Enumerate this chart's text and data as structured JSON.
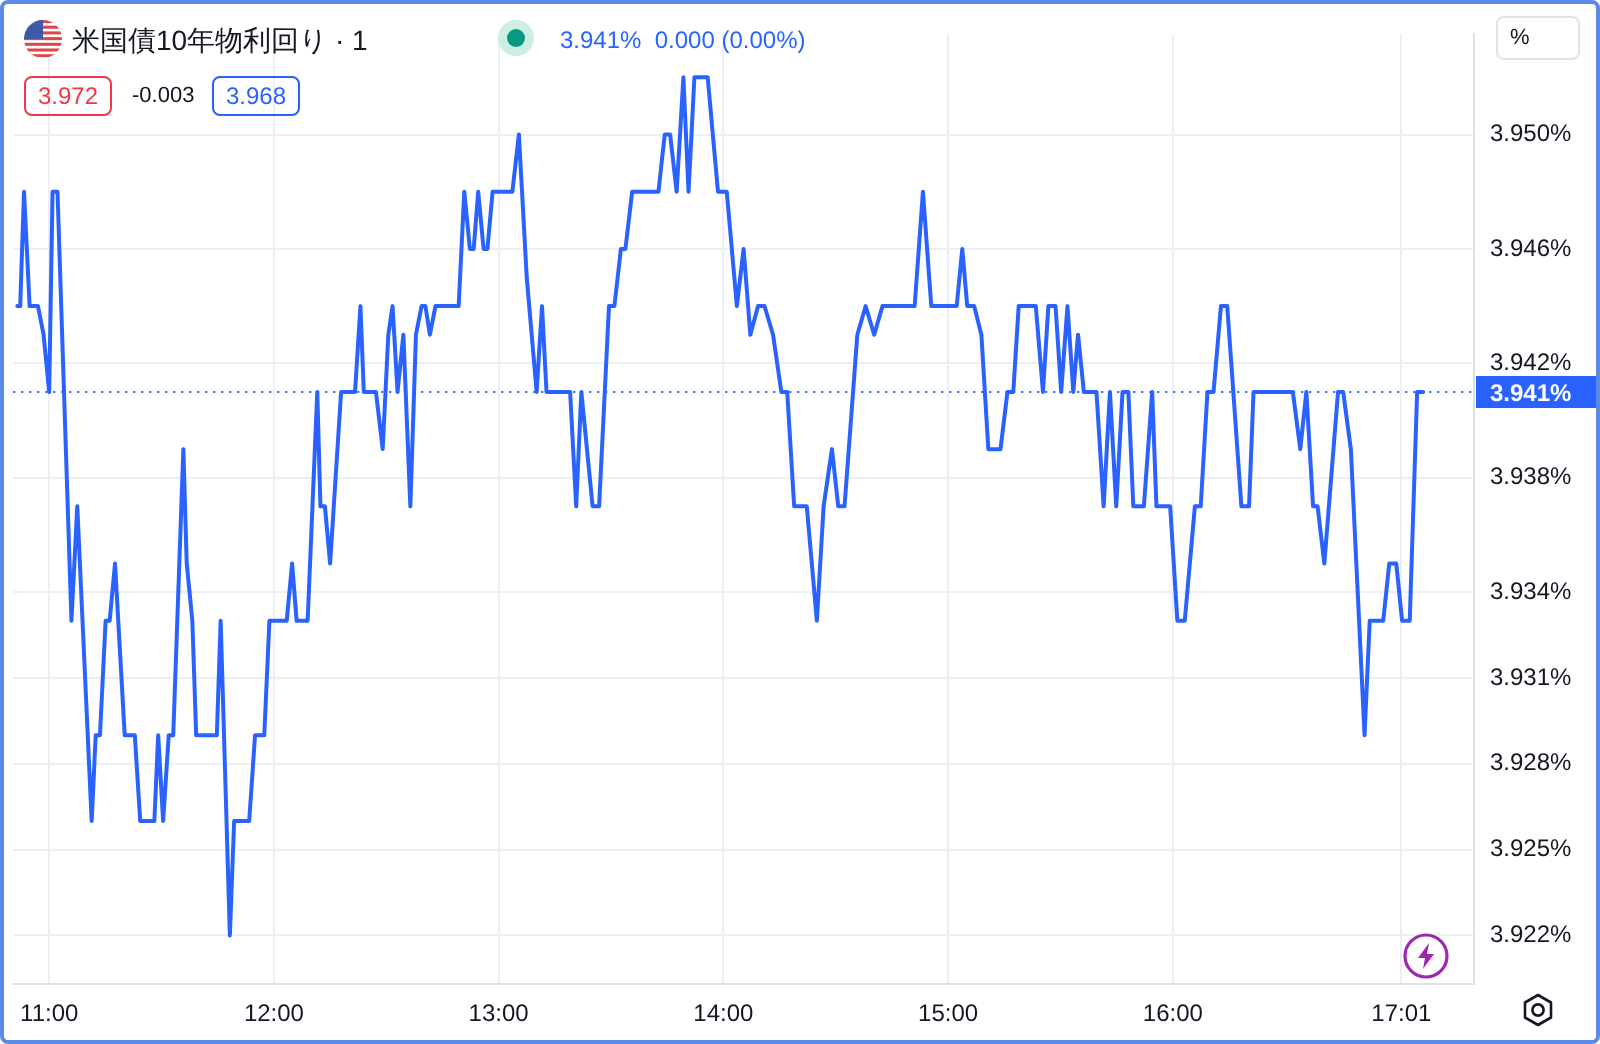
{
  "chart_data": {
    "type": "line",
    "title": "米国債10年物利回り · 1",
    "subtitle": "3.941%  0.000 (0.00%)",
    "annotations": [
      "3.972",
      "-0.003",
      "3.968",
      "%"
    ],
    "x": [
      10.858,
      10.871,
      10.888,
      10.913,
      10.95,
      10.975,
      11,
      11.015,
      11.037,
      11.099,
      11.125,
      11.189,
      11.207,
      11.226,
      11.251,
      11.269,
      11.293,
      11.336,
      11.381,
      11.405,
      11.468,
      11.485,
      11.507,
      11.532,
      11.552,
      11.597,
      11.612,
      11.637,
      11.654,
      11.746,
      11.763,
      11.804,
      11.823,
      11.89,
      11.916,
      11.957,
      11.98,
      12.057,
      12.081,
      12.101,
      12.15,
      12.193,
      12.207,
      12.227,
      12.25,
      12.299,
      12.361,
      12.385,
      12.4,
      12.454,
      12.484,
      12.509,
      12.528,
      12.55,
      12.576,
      12.607,
      12.632,
      12.657,
      12.674,
      12.694,
      12.719,
      12.822,
      12.847,
      12.872,
      12.889,
      12.909,
      12.933,
      12.95,
      12.973,
      13.061,
      13.09,
      13.125,
      13.169,
      13.193,
      13.213,
      13.318,
      13.345,
      13.368,
      13.418,
      13.447,
      13.491,
      13.515,
      13.544,
      13.564,
      13.594,
      13.711,
      13.739,
      13.763,
      13.792,
      13.822,
      13.845,
      13.871,
      13.93,
      13.976,
      14.015,
      14.06,
      14.09,
      14.12,
      14.154,
      14.183,
      14.221,
      14.258,
      14.284,
      14.315,
      14.371,
      14.416,
      14.446,
      14.483,
      14.511,
      14.539,
      14.596,
      14.633,
      14.671,
      14.708,
      14.851,
      14.888,
      14.925,
      15.038,
      15.063,
      15.085,
      15.116,
      15.148,
      15.179,
      15.233,
      15.264,
      15.29,
      15.314,
      15.39,
      15.422,
      15.446,
      15.478,
      15.503,
      15.531,
      15.557,
      15.578,
      15.604,
      15.66,
      15.692,
      15.72,
      15.748,
      15.776,
      15.802,
      15.824,
      15.871,
      15.908,
      15.927,
      15.988,
      16.02,
      16.053,
      16.098,
      16.124,
      16.154,
      16.181,
      16.214,
      16.242,
      16.305,
      16.339,
      16.359,
      16.534,
      16.567,
      16.594,
      16.624,
      16.644,
      16.674,
      16.735,
      16.758,
      16.792,
      16.853,
      16.876,
      16.936,
      16.963,
      16.994,
      17.02,
      17.054,
      17.087,
      17.114
    ],
    "values": [
      3.944,
      3.944,
      3.948,
      3.944,
      3.944,
      3.943,
      3.941,
      3.948,
      3.948,
      3.933,
      3.937,
      3.926,
      3.929,
      3.929,
      3.933,
      3.933,
      3.935,
      3.929,
      3.929,
      3.926,
      3.926,
      3.929,
      3.926,
      3.929,
      3.929,
      3.939,
      3.935,
      3.933,
      3.929,
      3.929,
      3.933,
      3.922,
      3.926,
      3.926,
      3.929,
      3.929,
      3.933,
      3.933,
      3.935,
      3.933,
      3.933,
      3.941,
      3.937,
      3.937,
      3.935,
      3.941,
      3.941,
      3.944,
      3.941,
      3.941,
      3.939,
      3.943,
      3.944,
      3.941,
      3.943,
      3.937,
      3.943,
      3.944,
      3.944,
      3.943,
      3.944,
      3.944,
      3.948,
      3.946,
      3.946,
      3.948,
      3.946,
      3.946,
      3.948,
      3.948,
      3.95,
      3.945,
      3.941,
      3.944,
      3.941,
      3.941,
      3.937,
      3.941,
      3.937,
      3.937,
      3.944,
      3.944,
      3.946,
      3.946,
      3.948,
      3.948,
      3.95,
      3.95,
      3.948,
      3.952,
      3.948,
      3.952,
      3.952,
      3.948,
      3.948,
      3.944,
      3.946,
      3.943,
      3.944,
      3.944,
      3.943,
      3.941,
      3.941,
      3.937,
      3.937,
      3.933,
      3.937,
      3.939,
      3.937,
      3.937,
      3.943,
      3.944,
      3.943,
      3.944,
      3.944,
      3.948,
      3.944,
      3.944,
      3.946,
      3.944,
      3.944,
      3.943,
      3.939,
      3.939,
      3.941,
      3.941,
      3.944,
      3.944,
      3.941,
      3.944,
      3.944,
      3.941,
      3.944,
      3.941,
      3.943,
      3.941,
      3.941,
      3.937,
      3.941,
      3.937,
      3.941,
      3.941,
      3.937,
      3.937,
      3.941,
      3.937,
      3.937,
      3.933,
      3.933,
      3.937,
      3.937,
      3.941,
      3.941,
      3.944,
      3.944,
      3.937,
      3.937,
      3.941,
      3.941,
      3.939,
      3.941,
      3.937,
      3.937,
      3.935,
      3.941,
      3.941,
      3.939,
      3.929,
      3.933,
      3.933,
      3.935,
      3.935,
      3.933,
      3.933,
      3.941,
      3.941
    ],
    "color": "#2962ff",
    "xlim": [
      10.84,
      17.34
    ],
    "xticks": [
      {
        "value": 11,
        "label": "11:00"
      },
      {
        "value": 12,
        "label": "12:00"
      },
      {
        "value": 13,
        "label": "13:00"
      },
      {
        "value": 14,
        "label": "14:00"
      },
      {
        "value": 15,
        "label": "15:00"
      },
      {
        "value": 16,
        "label": "16:00"
      },
      {
        "value": 17.0167,
        "label": "17:01"
      }
    ],
    "ylim": [
      3.9203,
      3.9535
    ],
    "yticks": [
      {
        "value": 3.922,
        "label": "3.922%"
      },
      {
        "value": 3.925,
        "label": "3.925%"
      },
      {
        "value": 3.928,
        "label": "3.928%"
      },
      {
        "value": 3.931,
        "label": "3.931%"
      },
      {
        "value": 3.934,
        "label": "3.934%"
      },
      {
        "value": 3.938,
        "label": "3.938%"
      },
      {
        "value": 3.942,
        "label": "3.942%"
      },
      {
        "value": 3.946,
        "label": "3.946%"
      },
      {
        "value": 3.95,
        "label": "3.950%"
      }
    ],
    "grid": true,
    "ref_lines": [
      {
        "axis": "y",
        "value": 3.941,
        "label": "3.941%",
        "color": "#2962ff",
        "line_style": "dotted"
      }
    ]
  }
}
